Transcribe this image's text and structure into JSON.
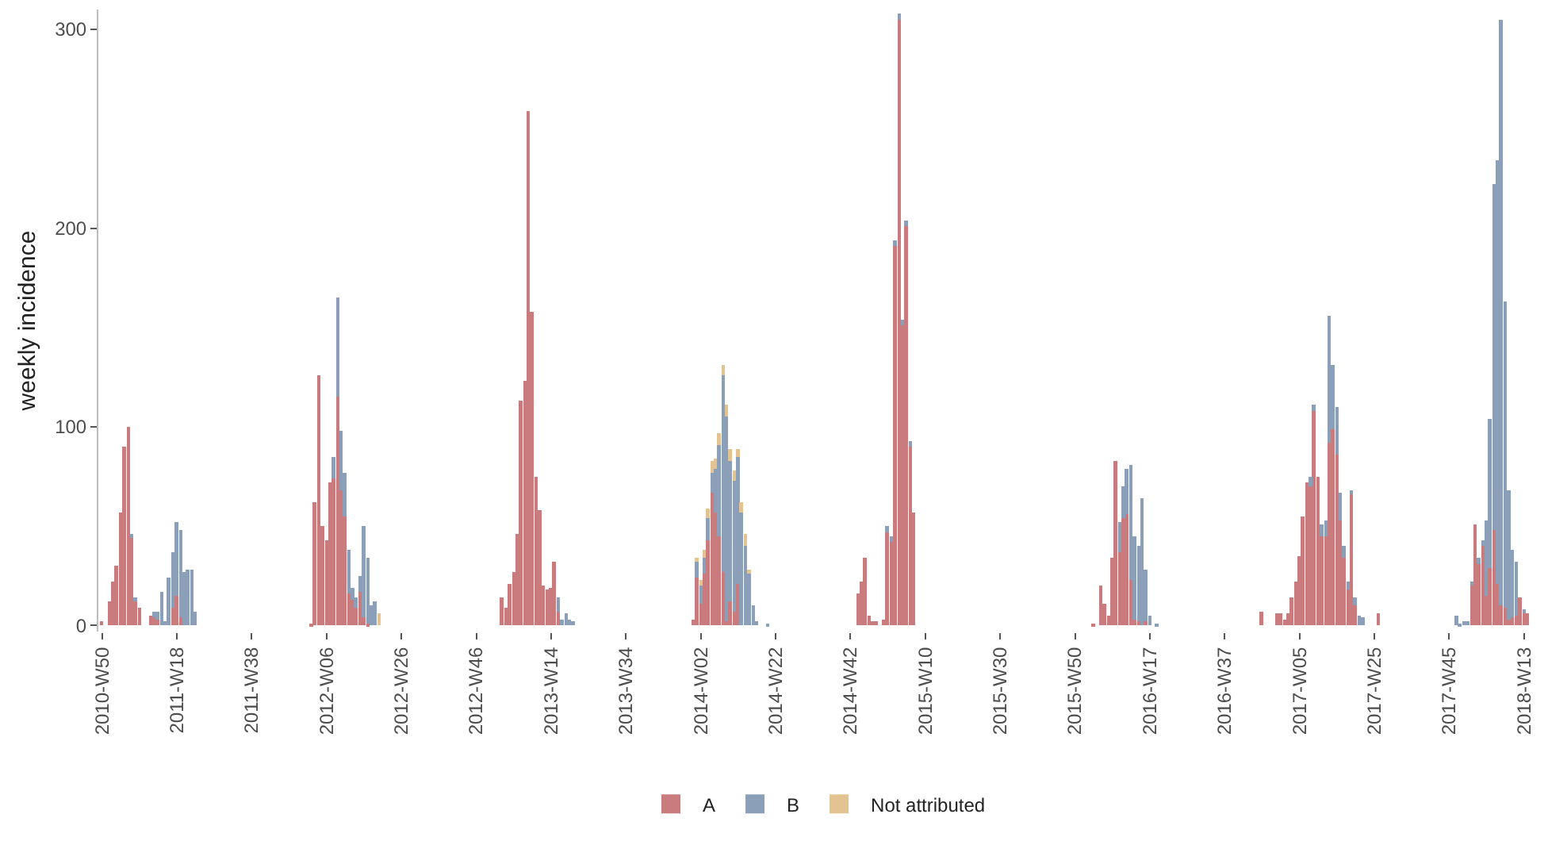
{
  "chart_data": {
    "type": "bar",
    "stacked": true,
    "ylabel": "weekly incidence",
    "legend": "bottom",
    "grid": false,
    "ylim": [
      -3,
      310
    ],
    "yticks": [
      0,
      100,
      200,
      300
    ],
    "categories": [
      "2010-W50",
      null,
      null,
      null,
      null,
      null,
      null,
      null,
      null,
      null,
      null,
      null,
      null,
      null,
      null,
      null,
      null,
      null,
      null,
      null,
      "2011-W18",
      null,
      null,
      null,
      null,
      null,
      null,
      null,
      null,
      null,
      null,
      null,
      null,
      null,
      null,
      null,
      null,
      null,
      null,
      null,
      "2011-W38",
      null,
      null,
      null,
      null,
      null,
      null,
      null,
      null,
      null,
      null,
      null,
      null,
      null,
      null,
      null,
      null,
      null,
      null,
      null,
      "2012-W06",
      null,
      null,
      null,
      null,
      null,
      null,
      null,
      null,
      null,
      null,
      null,
      null,
      null,
      null,
      null,
      null,
      null,
      null,
      null,
      "2012-W26",
      null,
      null,
      null,
      null,
      null,
      null,
      null,
      null,
      null,
      null,
      null,
      null,
      null,
      null,
      null,
      null,
      null,
      null,
      null,
      "2012-W46",
      null,
      null,
      null,
      null,
      null,
      null,
      null,
      null,
      null,
      null,
      null,
      null,
      null,
      null,
      null,
      null,
      null,
      null,
      null,
      "2013-W14",
      null,
      null,
      null,
      null,
      null,
      null,
      null,
      null,
      null,
      null,
      null,
      null,
      null,
      null,
      null,
      null,
      null,
      null,
      null,
      "2013-W34",
      null,
      null,
      null,
      null,
      null,
      null,
      null,
      null,
      null,
      null,
      null,
      null,
      null,
      null,
      null,
      null,
      null,
      null,
      null,
      "2014-W02",
      null,
      null,
      null,
      null,
      null,
      null,
      null,
      null,
      null,
      null,
      null,
      null,
      null,
      null,
      null,
      null,
      null,
      null,
      null,
      "2014-W22",
      null,
      null,
      null,
      null,
      null,
      null,
      null,
      null,
      null,
      null,
      null,
      null,
      null,
      null,
      null,
      null,
      null,
      null,
      null,
      "2014-W42",
      null,
      null,
      null,
      null,
      null,
      null,
      null,
      null,
      null,
      null,
      null,
      null,
      null,
      null,
      null,
      null,
      null,
      null,
      null,
      "2015-W10",
      null,
      null,
      null,
      null,
      null,
      null,
      null,
      null,
      null,
      null,
      null,
      null,
      null,
      null,
      null,
      null,
      null,
      null,
      null,
      "2015-W30",
      null,
      null,
      null,
      null,
      null,
      null,
      null,
      null,
      null,
      null,
      null,
      null,
      null,
      null,
      null,
      null,
      null,
      null,
      null,
      "2015-W50",
      null,
      null,
      null,
      null,
      null,
      null,
      null,
      null,
      null,
      null,
      null,
      null,
      null,
      null,
      null,
      null,
      null,
      null,
      null,
      "2016-W17",
      null,
      null,
      null,
      null,
      null,
      null,
      null,
      null,
      null,
      null,
      null,
      null,
      null,
      null,
      null,
      null,
      null,
      null,
      null,
      "2016-W37",
      null,
      null,
      null,
      null,
      null,
      null,
      null,
      null,
      null,
      null,
      null,
      null,
      null,
      null,
      null,
      null,
      null,
      null,
      null,
      "2017-W05",
      null,
      null,
      null,
      null,
      null,
      null,
      null,
      null,
      null,
      null,
      null,
      null,
      null,
      null,
      null,
      null,
      null,
      null,
      null,
      "2017-W25",
      null,
      null,
      null,
      null,
      null,
      null,
      null,
      null,
      null,
      null,
      null,
      null,
      null,
      null,
      null,
      null,
      null,
      null,
      null,
      "2017-W45",
      null,
      null,
      null,
      null,
      null,
      null,
      null,
      null,
      null,
      null,
      null,
      null,
      null,
      null,
      null,
      null,
      null,
      null,
      null,
      "2018-W13",
      null,
      null
    ],
    "series": [
      {
        "name": "A",
        "color": "#c97b7e",
        "values": [
          2,
          null,
          12,
          22,
          30,
          57,
          90,
          100,
          44,
          12,
          9,
          null,
          null,
          5,
          4,
          3,
          null,
          null,
          null,
          9,
          15,
          4,
          null,
          null,
          null,
          null,
          null,
          null,
          null,
          null,
          null,
          null,
          null,
          null,
          null,
          null,
          null,
          null,
          null,
          null,
          null,
          null,
          null,
          null,
          null,
          null,
          null,
          null,
          null,
          null,
          null,
          null,
          null,
          null,
          null,
          null,
          1,
          62,
          126,
          50,
          43,
          72,
          74,
          115,
          68,
          55,
          16,
          13,
          9,
          17,
          4,
          1,
          null,
          null,
          null,
          null,
          null,
          null,
          null,
          null,
          null,
          null,
          null,
          null,
          null,
          null,
          null,
          null,
          null,
          null,
          null,
          null,
          null,
          null,
          null,
          null,
          null,
          null,
          null,
          null,
          null,
          null,
          null,
          null,
          null,
          null,
          null,
          14,
          9,
          21,
          27,
          46,
          113,
          123,
          259,
          158,
          75,
          58,
          20,
          18,
          19,
          32,
          7,
          null,
          null,
          null,
          null,
          null,
          null,
          null,
          null,
          null,
          null,
          null,
          null,
          null,
          null,
          null,
          null,
          null,
          null,
          null,
          null,
          null,
          null,
          null,
          null,
          null,
          null,
          null,
          null,
          null,
          null,
          null,
          null,
          null,
          null,
          null,
          3,
          24,
          11,
          26,
          43,
          67,
          57,
          45,
          27,
          2,
          12,
          7,
          21,
          null,
          null,
          null,
          null,
          null,
          null,
          null,
          null,
          null,
          null,
          null,
          null,
          null,
          null,
          null,
          null,
          null,
          null,
          null,
          null,
          null,
          null,
          null,
          null,
          null,
          null,
          null,
          null,
          null,
          null,
          null,
          16,
          22,
          34,
          5,
          2,
          2,
          null,
          3,
          47,
          42,
          191,
          305,
          151,
          201,
          90,
          57,
          null,
          null,
          null,
          null,
          null,
          null,
          null,
          null,
          null,
          null,
          null,
          null,
          null,
          null,
          null,
          null,
          null,
          null,
          null,
          null,
          null,
          null,
          null,
          null,
          null,
          null,
          null,
          null,
          null,
          null,
          null,
          null,
          null,
          null,
          null,
          null,
          null,
          null,
          null,
          null,
          null,
          null,
          null,
          null,
          null,
          null,
          null,
          1,
          null,
          20,
          11,
          5,
          34,
          83,
          37,
          54,
          56,
          23,
          3,
          2,
          null,
          2,
          null,
          null,
          null,
          null,
          null,
          null,
          null,
          null,
          null,
          null,
          null,
          null,
          null,
          null,
          null,
          null,
          null,
          null,
          null,
          null,
          null,
          null,
          null,
          null,
          null,
          null,
          null,
          null,
          null,
          null,
          7,
          null,
          null,
          null,
          6,
          6,
          3,
          6,
          14,
          22,
          35,
          55,
          72,
          70,
          108,
          75,
          45,
          45,
          92,
          99,
          86,
          53,
          34,
          18,
          66,
          10,
          null,
          null,
          null,
          null,
          null,
          6,
          null,
          null,
          null,
          null,
          null,
          null,
          null,
          null,
          null,
          null,
          null,
          null,
          null,
          null,
          null,
          null,
          null,
          null,
          null,
          null,
          null,
          null,
          null,
          null,
          20,
          51,
          31,
          40,
          15,
          29,
          48,
          21,
          10,
          9,
          3,
          4,
          5,
          14,
          6,
          6,
          null
        ]
      },
      {
        "name": "B",
        "color": "#8b9fb8",
        "values": [
          null,
          null,
          null,
          null,
          null,
          null,
          null,
          null,
          2,
          2,
          null,
          null,
          null,
          null,
          3,
          4,
          17,
          2,
          24,
          28,
          37,
          44,
          27,
          28,
          28,
          7,
          null,
          null,
          null,
          null,
          null,
          null,
          null,
          null,
          null,
          null,
          null,
          null,
          null,
          null,
          null,
          null,
          null,
          null,
          null,
          null,
          null,
          null,
          null,
          null,
          null,
          null,
          null,
          null,
          null,
          null,
          null,
          null,
          null,
          null,
          null,
          null,
          11,
          50,
          30,
          22,
          22,
          6,
          5,
          8,
          46,
          33,
          10,
          12,
          null,
          null,
          null,
          null,
          null,
          null,
          null,
          null,
          null,
          null,
          null,
          null,
          null,
          null,
          null,
          null,
          null,
          null,
          null,
          null,
          null,
          null,
          null,
          null,
          null,
          null,
          null,
          null,
          null,
          null,
          null,
          null,
          null,
          null,
          null,
          null,
          null,
          null,
          null,
          null,
          null,
          null,
          null,
          null,
          null,
          null,
          null,
          null,
          7,
          3,
          6,
          3,
          2,
          null,
          null,
          null,
          null,
          null,
          null,
          null,
          null,
          null,
          null,
          null,
          null,
          null,
          null,
          null,
          null,
          null,
          null,
          null,
          null,
          null,
          null,
          null,
          null,
          null,
          null,
          null,
          null,
          null,
          null,
          null,
          null,
          8,
          9,
          8,
          11,
          10,
          22,
          46,
          99,
          103,
          71,
          66,
          64,
          57,
          40,
          26,
          10,
          2,
          null,
          null,
          1,
          null,
          null,
          null,
          null,
          null,
          null,
          null,
          null,
          null,
          null,
          null,
          null,
          null,
          null,
          null,
          null,
          null,
          null,
          null,
          null,
          null,
          null,
          null,
          null,
          null,
          null,
          null,
          null,
          null,
          null,
          null,
          3,
          3,
          3,
          3,
          3,
          3,
          3,
          null,
          null,
          null,
          null,
          null,
          null,
          null,
          null,
          null,
          null,
          null,
          null,
          null,
          null,
          null,
          null,
          null,
          null,
          null,
          null,
          null,
          null,
          null,
          null,
          null,
          null,
          null,
          null,
          null,
          null,
          null,
          null,
          null,
          null,
          null,
          null,
          null,
          null,
          null,
          null,
          null,
          null,
          null,
          null,
          null,
          null,
          null,
          null,
          null,
          null,
          null,
          null,
          null,
          null,
          null,
          15,
          16,
          23,
          58,
          42,
          38,
          64,
          26,
          5,
          null,
          1,
          null,
          null,
          null,
          null,
          null,
          null,
          null,
          null,
          null,
          null,
          null,
          null,
          null,
          null,
          null,
          null,
          null,
          null,
          null,
          null,
          null,
          null,
          null,
          null,
          null,
          null,
          null,
          null,
          null,
          null,
          null,
          null,
          null,
          null,
          null,
          null,
          null,
          null,
          null,
          null,
          5,
          3,
          null,
          6,
          8,
          64,
          32,
          24,
          14,
          6,
          4,
          2,
          4,
          5,
          4,
          null,
          null,
          null,
          null,
          null,
          null,
          null,
          null,
          null,
          null,
          null,
          null,
          null,
          null,
          null,
          null,
          null,
          null,
          null,
          null,
          null,
          null,
          null,
          null,
          5,
          1,
          2,
          2,
          2,
          null,
          3,
          3,
          38,
          75,
          174,
          213,
          295,
          154,
          65,
          34,
          27,
          null,
          2,
          null,
          null
        ]
      },
      {
        "name": "Not attributed",
        "color": "#e3c391",
        "values": [
          null,
          null,
          null,
          null,
          null,
          null,
          null,
          null,
          null,
          null,
          null,
          null,
          null,
          null,
          null,
          null,
          null,
          null,
          null,
          null,
          null,
          null,
          null,
          null,
          null,
          null,
          null,
          null,
          null,
          null,
          null,
          null,
          null,
          null,
          null,
          null,
          null,
          null,
          null,
          null,
          null,
          null,
          null,
          null,
          null,
          null,
          null,
          null,
          null,
          null,
          null,
          null,
          null,
          null,
          null,
          null,
          null,
          null,
          null,
          null,
          null,
          null,
          null,
          null,
          null,
          null,
          null,
          null,
          null,
          null,
          null,
          null,
          null,
          null,
          6,
          null,
          null,
          null,
          null,
          null,
          null,
          null,
          null,
          null,
          null,
          null,
          null,
          null,
          null,
          null,
          null,
          null,
          null,
          null,
          null,
          null,
          null,
          null,
          null,
          null,
          null,
          null,
          null,
          null,
          null,
          null,
          null,
          null,
          null,
          null,
          null,
          null,
          null,
          null,
          null,
          null,
          null,
          null,
          null,
          null,
          null,
          null,
          null,
          null,
          null,
          null,
          null,
          null,
          null,
          null,
          null,
          null,
          null,
          null,
          null,
          null,
          null,
          null,
          null,
          null,
          null,
          null,
          null,
          null,
          null,
          null,
          null,
          null,
          null,
          null,
          null,
          null,
          null,
          null,
          null,
          null,
          null,
          null,
          null,
          2,
          3,
          4,
          5,
          6,
          5,
          6,
          5,
          6,
          6,
          5,
          4,
          5,
          6,
          2,
          null,
          null,
          null,
          null,
          null,
          null,
          null,
          null,
          null,
          null,
          null,
          null,
          null,
          null,
          null,
          null,
          null,
          null,
          null,
          null,
          null,
          null,
          null,
          null,
          null,
          null,
          null,
          null,
          null,
          null,
          null,
          null,
          null,
          null,
          null,
          null,
          null,
          null,
          null,
          null,
          null,
          null,
          null,
          null,
          null,
          null,
          null,
          null,
          null,
          null,
          null,
          null,
          null,
          null,
          null,
          null,
          null,
          null,
          null,
          null,
          null,
          null,
          null,
          null,
          null,
          null,
          null,
          null,
          null,
          null,
          null,
          null,
          null,
          null,
          null,
          null,
          null,
          null,
          null,
          null,
          null,
          null,
          null,
          null,
          null,
          null,
          null,
          null,
          null,
          null,
          null,
          null,
          null,
          null,
          null,
          null,
          null,
          null,
          null,
          null,
          null,
          null,
          null,
          null,
          null,
          null,
          null,
          null,
          null,
          null,
          null,
          null,
          null,
          null,
          null,
          null,
          null,
          null,
          null,
          null,
          null,
          null,
          null,
          null,
          null,
          null,
          null,
          null,
          null,
          null,
          null,
          null,
          null,
          null,
          null,
          null,
          null,
          null,
          null,
          null,
          null,
          null,
          null,
          null,
          null,
          null,
          null,
          null,
          null,
          null,
          null,
          null,
          null,
          null,
          null,
          null,
          null,
          null,
          null,
          null,
          null,
          null,
          null,
          null,
          null,
          null,
          null,
          null,
          null,
          null,
          null,
          null,
          null,
          null,
          null,
          null,
          null,
          null,
          null,
          null,
          null,
          null,
          null,
          null,
          null,
          null,
          null,
          null,
          null,
          null,
          null,
          null,
          null,
          null,
          null,
          null,
          null,
          null,
          null,
          null,
          null,
          null,
          null,
          null,
          null,
          null,
          null,
          null,
          null
        ]
      }
    ]
  }
}
